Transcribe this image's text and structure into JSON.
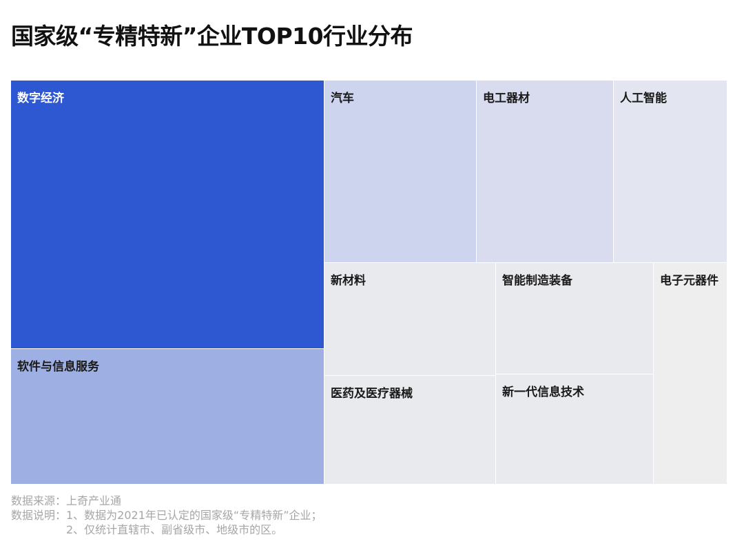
{
  "chart_data": {
    "type": "treemap",
    "title": "国家级“专精特新”企业TOP10行业分布",
    "categories": [
      "数字经济",
      "软件与信息服务",
      "汽车",
      "电工器材",
      "人工智能",
      "新材料",
      "智能制造装备",
      "电子元器件",
      "医药及医疗器械",
      "新一代信息技术"
    ],
    "values": [
      1004,
      502,
      409,
      350,
      287,
      214,
      205,
      187,
      202,
      204
    ],
    "value_note": "values are relative area estimates read from the treemap; no numeric labels are printed",
    "colors": {
      "数字经济": "#2d58d2",
      "软件与信息服务": "#9eb0e3",
      "汽车": "#cdd5ee",
      "电工器材": "#d8dcee",
      "人工智能": "#e3e6f0",
      "新材料": "#e9eaee",
      "智能制造装备": "#e9eaee",
      "电子元器件": "#eeeeef",
      "医药及医疗器械": "#e9eaee",
      "新一代信息技术": "#e9eaee"
    },
    "label_colors": {
      "数字经济": "#ffffff",
      "default": "#1a1a1a"
    }
  },
  "notes": {
    "source": "数据来源：上奇产业通",
    "explain_1": "数据说明：1、数据为2021年已认定的国家级“专精特新”企业；",
    "explain_2": "2、仅统计直辖市、副省级市、地级市的区。"
  }
}
